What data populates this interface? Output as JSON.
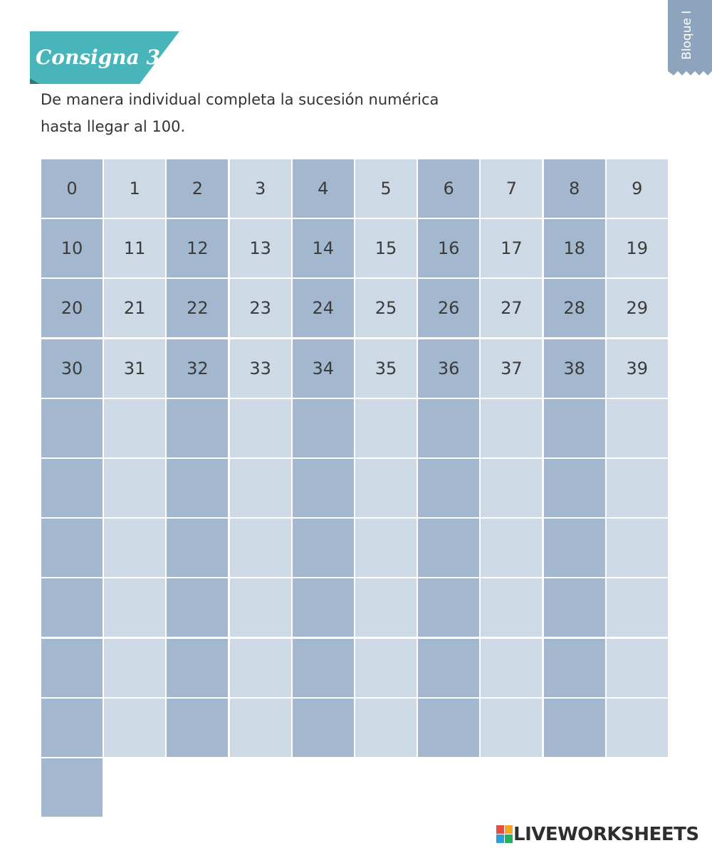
{
  "header": {
    "badge": "Consigna 3",
    "tab": "Bloque I"
  },
  "instructions": [
    "De manera individual completa la sucesión numérica",
    "hasta llegar al 100."
  ],
  "table": {
    "rows": [
      [
        0,
        1,
        2,
        3,
        4,
        5,
        6,
        7,
        8,
        9
      ],
      [
        10,
        11,
        12,
        13,
        14,
        15,
        16,
        17,
        18,
        19
      ],
      [
        20,
        21,
        22,
        23,
        24,
        25,
        26,
        27,
        28,
        29
      ],
      [
        30,
        31,
        32,
        33,
        34,
        35,
        36,
        37,
        38,
        39
      ]
    ]
  },
  "footer": {
    "logo": "LIVEWORKSHEETS"
  }
}
